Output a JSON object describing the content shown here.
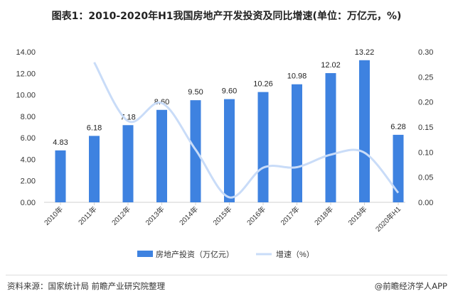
{
  "title": "图表1：2010-2020年H1我国房地产开发投资及同比增速(单位：万亿元，%)",
  "footer": {
    "source": "资料来源：国家统计局 前瞻产业研究院整理",
    "brand": "@前瞻经济学人APP"
  },
  "colors": {
    "bar": "#3e82e0",
    "line": "#c9dcf8"
  },
  "chart_data": {
    "type": "bar+line",
    "title": "图表1：2010-2020年H1我国房地产开发投资及同比增速(单位：万亿元，%)",
    "categories": [
      "2010年",
      "2011年",
      "2012年",
      "2013年",
      "2014年",
      "2015年",
      "2016年",
      "2017年",
      "2018年",
      "2019年",
      "2020年H1"
    ],
    "series": [
      {
        "name": "房地产投资（万亿元）",
        "type": "bar",
        "axis": "left",
        "values": [
          4.83,
          6.18,
          7.18,
          8.6,
          9.5,
          9.6,
          10.26,
          10.98,
          12.02,
          13.22,
          6.28
        ],
        "labels": [
          "4.83",
          "6.18",
          "7.18",
          "8.60",
          "9.50",
          "9.60",
          "10.26",
          "10.98",
          "12.02",
          "13.22",
          "6.28"
        ]
      },
      {
        "name": "增速（%）",
        "type": "line",
        "axis": "right",
        "values": [
          null,
          0.279,
          0.162,
          0.198,
          0.105,
          0.01,
          0.069,
          0.07,
          0.095,
          0.099,
          0.019
        ]
      }
    ],
    "left_axis": {
      "range": [
        0,
        14
      ],
      "ticks": [
        "0.00",
        "2.00",
        "4.00",
        "6.00",
        "8.00",
        "10.00",
        "12.00",
        "14.00"
      ]
    },
    "right_axis": {
      "range": [
        0,
        0.3
      ],
      "ticks": [
        "0.00",
        "0.05",
        "0.10",
        "0.15",
        "0.20",
        "0.25",
        "0.30"
      ]
    },
    "grid": false,
    "legend": "bottom"
  }
}
